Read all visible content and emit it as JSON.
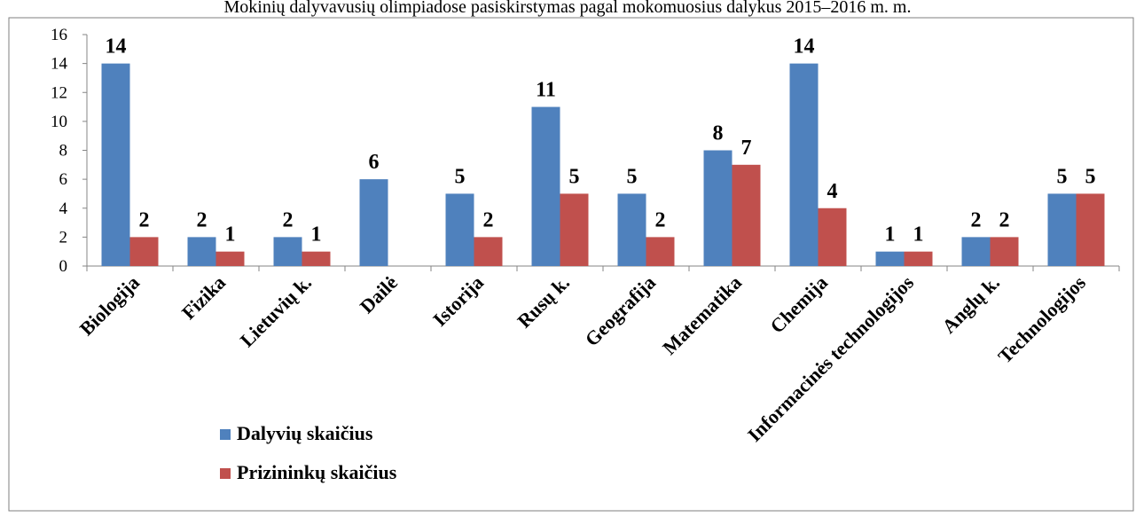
{
  "page_title": "Mokinių dalyvavusių olimpiadose pasiskirstymas pagal mokomuosius dalykus 2015–2016 m. m.",
  "chart_data": {
    "type": "bar",
    "title": "",
    "xlabel": "",
    "ylabel": "",
    "ylim": [
      0,
      16
    ],
    "yticks": [
      0,
      2,
      4,
      6,
      8,
      10,
      12,
      14,
      16
    ],
    "grid": false,
    "legend_position": "bottom-left",
    "categories": [
      "Biologija",
      "Fizika",
      "Lietuvių k.",
      "Dailė",
      "Istorija",
      "Rusų k.",
      "Geografija",
      "Matematika",
      "Chemija",
      "Informacinės technologijos",
      "Anglų k.",
      "Technologijos"
    ],
    "series": [
      {
        "name": "Dalyvių skaičius",
        "color": "#4F81BD",
        "values": [
          14,
          2,
          2,
          6,
          5,
          11,
          5,
          8,
          14,
          1,
          2,
          5
        ]
      },
      {
        "name": "Prizininkų skaičius",
        "color": "#C0504D",
        "values": [
          2,
          1,
          1,
          null,
          2,
          5,
          2,
          7,
          4,
          1,
          2,
          5
        ]
      }
    ]
  }
}
